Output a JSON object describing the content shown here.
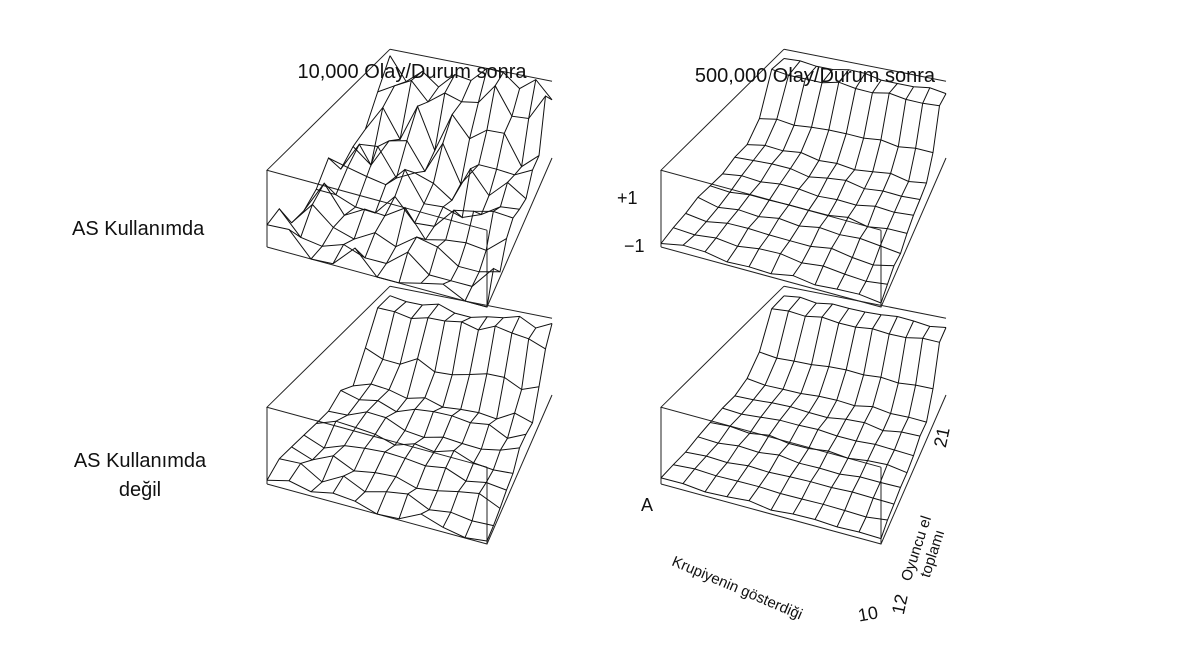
{
  "columns": [
    "10,000 Olay/Durum sonra",
    "500,000 Olay/Durum sonra"
  ],
  "rows": [
    {
      "label_lines": [
        "AS Kullanımda"
      ]
    },
    {
      "label_lines": [
        "AS Kullanımda",
        "değil"
      ]
    }
  ],
  "z_axis": {
    "max_label": "+1",
    "min_label": "−1"
  },
  "dealer_axis": {
    "label": "Krupiyenin gösterdiği",
    "start": "A",
    "end": "10"
  },
  "player_axis": {
    "label_lines": [
      "Oyuncu el",
      "toplamı"
    ],
    "start": "12",
    "end": "21"
  },
  "panels": [
    {
      "row": 0,
      "col": 0,
      "roughness": 0.55
    },
    {
      "row": 0,
      "col": 1,
      "roughness": 0.08
    },
    {
      "row": 1,
      "col": 0,
      "roughness": 0.18
    },
    {
      "row": 1,
      "col": 1,
      "roughness": 0.05
    }
  ]
}
